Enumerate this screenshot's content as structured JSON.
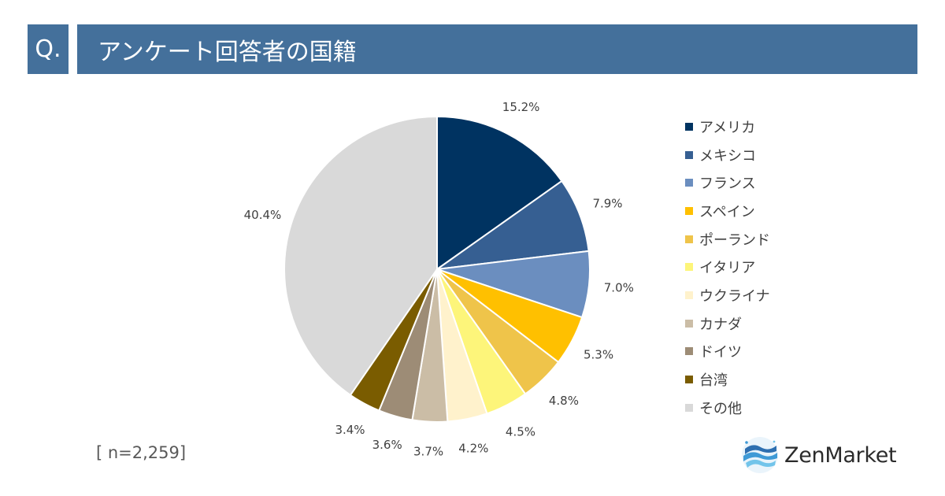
{
  "header": {
    "q_label": "Q.",
    "title": "アンケート回答者の国籍"
  },
  "sample_size": "[ n=2,259]",
  "logo": {
    "name": "ZenMarket",
    "icon": "zenmarket-wave-icon"
  },
  "chart_data": {
    "type": "pie",
    "title": "アンケート回答者の国籍",
    "legend_position": "right",
    "slices": [
      {
        "label": "アメリカ",
        "value": 15.2,
        "display": "15.2%",
        "color": "#003361"
      },
      {
        "label": "メキシコ",
        "value": 7.9,
        "display": "7.9%",
        "color": "#365f92"
      },
      {
        "label": "フランス",
        "value": 7.0,
        "display": "7.0%",
        "color": "#6b8ebf"
      },
      {
        "label": "スペイン",
        "value": 5.3,
        "display": "5.3%",
        "color": "#ffc000"
      },
      {
        "label": "ポーランド",
        "value": 4.8,
        "display": "4.8%",
        "color": "#efc44a"
      },
      {
        "label": "イタリア",
        "value": 4.5,
        "display": "4.5%",
        "color": "#fdf57a"
      },
      {
        "label": "ウクライナ",
        "value": 4.2,
        "display": "4.2%",
        "color": "#fff2cc"
      },
      {
        "label": "カナダ",
        "value": 3.7,
        "display": "3.7%",
        "color": "#cbbda6"
      },
      {
        "label": "ドイツ",
        "value": 3.6,
        "display": "3.6%",
        "color": "#9d8c76"
      },
      {
        "label": "台湾",
        "value": 3.4,
        "display": "3.4%",
        "color": "#7a5c00"
      },
      {
        "label": "その他",
        "value": 40.4,
        "display": "40.4%",
        "color": "#d9d9d9"
      }
    ]
  }
}
